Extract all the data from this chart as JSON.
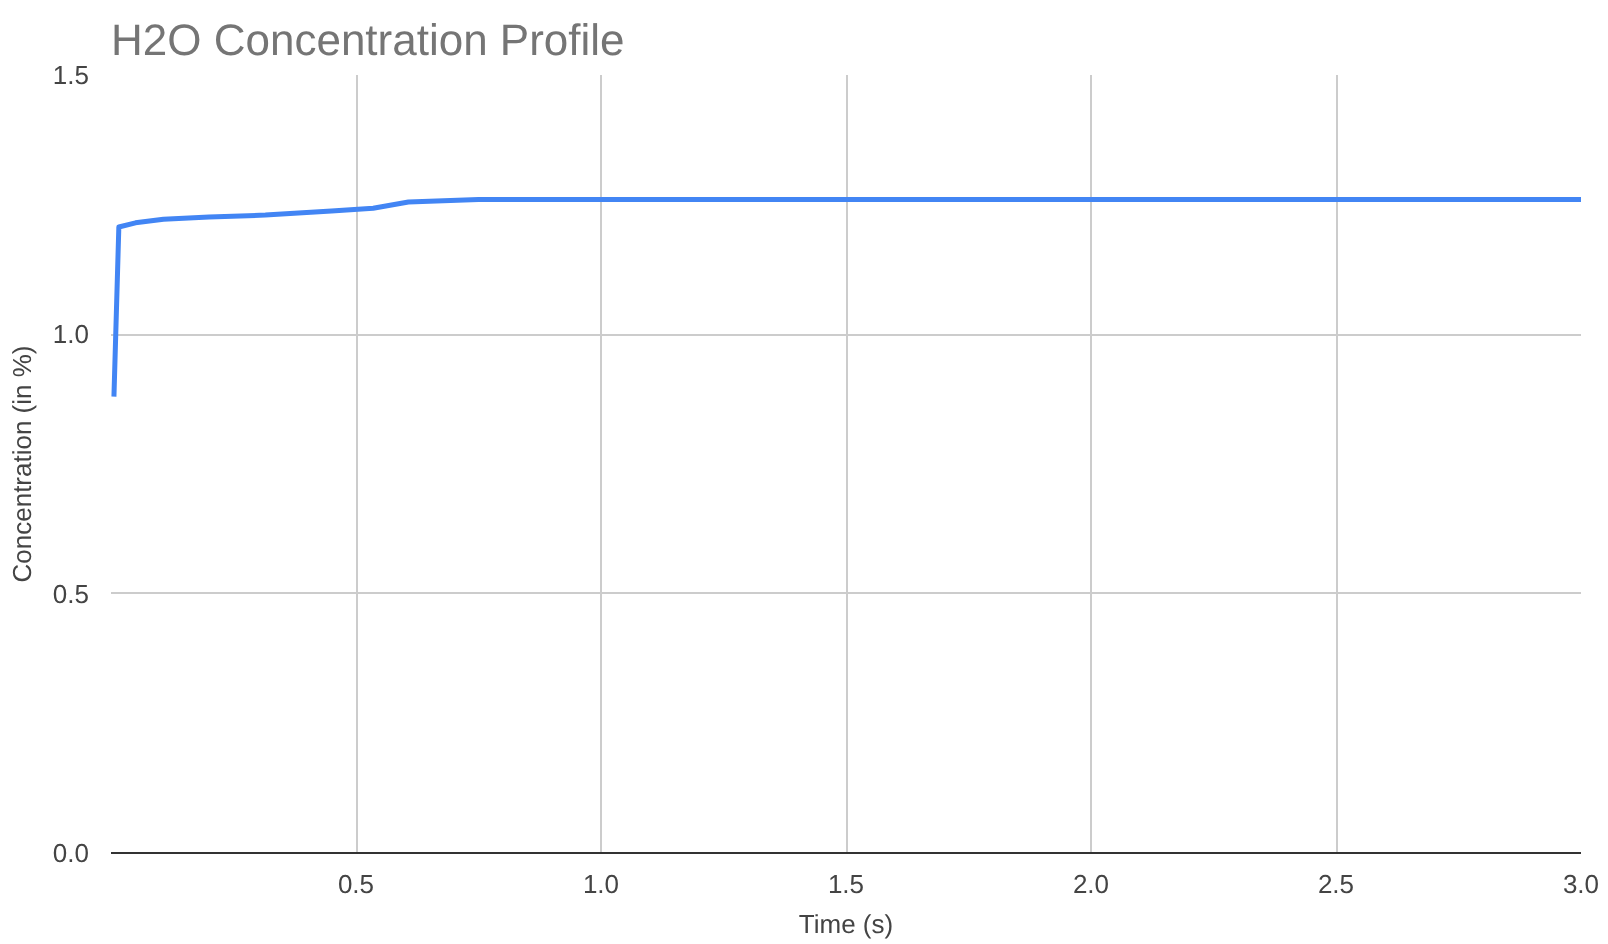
{
  "chart_data": {
    "type": "line",
    "title": "H2O Concentration Profile",
    "xlabel": "Time (s)",
    "ylabel": "Concentration (in %)",
    "x": [
      0.006,
      0.016,
      0.05,
      0.107,
      0.2,
      0.315,
      0.45,
      0.535,
      0.607,
      0.75,
      1.0,
      2.0,
      3.0
    ],
    "series": [
      {
        "color": "#4285f4",
        "values": [
          0.88,
          1.207,
          1.215,
          1.222,
          1.226,
          1.23,
          1.238,
          1.243,
          1.255,
          1.26,
          1.26,
          1.26,
          1.26
        ]
      }
    ],
    "xlim": [
      0,
      3.0
    ],
    "ylim": [
      0,
      1.5
    ],
    "xticks": [
      0.5,
      {
        "value": 1,
        "label": "1.0"
      },
      1.5,
      {
        "value": 2,
        "label": "2.0"
      },
      2.5,
      {
        "value": 3,
        "label": "3.0"
      }
    ],
    "yticks": [
      {
        "value": 0,
        "label": "0.0"
      },
      0.5,
      {
        "value": 1,
        "label": "1.0"
      },
      1.5
    ],
    "grid": true,
    "marker": "none",
    "line_style": "solid"
  }
}
